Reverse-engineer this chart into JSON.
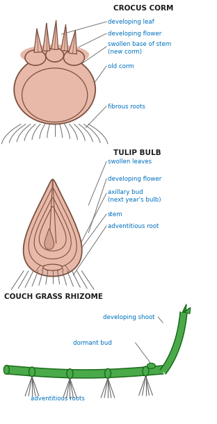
{
  "bg_color": "#ffffff",
  "line_color": "#666666",
  "text_color_label": "#0070c0",
  "text_color_title": "#1a1a1a",
  "corm_fill": "#e8b8a8",
  "corm_outline": "#7a5040",
  "rhizome_fill": "#4aaa4a",
  "rhizome_outline": "#1a6a1a",
  "root_color": "#444444",
  "crocus_title": "CROCUS CORM",
  "crocus_labels": [
    "developing leaf",
    "developing flower",
    "swollen base of stem\n(new corm)",
    "old corm",
    "fibrous roots"
  ],
  "tulip_title": "TULIP BULB",
  "tulip_labels": [
    "swollen leaves",
    "developing flower",
    "axillary bud\n(next year's bulb)",
    "stem",
    "adventitious root"
  ],
  "rhizome_title": "COUCH GRASS RHIZOME",
  "rhizome_labels": [
    "developing shoot",
    "dormant bud",
    "adventitious roots"
  ]
}
